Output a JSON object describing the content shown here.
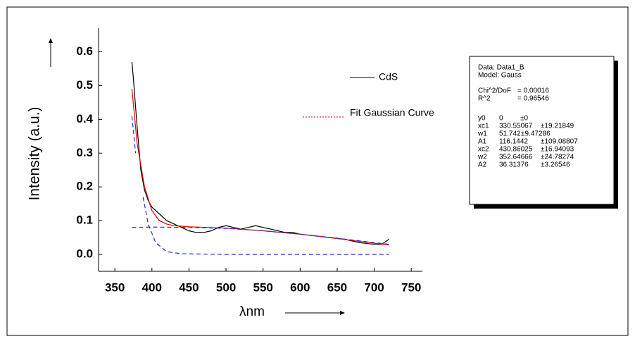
{
  "chart_data": {
    "type": "line",
    "x_label": "λnm",
    "y_label": "Intensity (a.u.)",
    "xlim": [
      328,
      765
    ],
    "ylim": [
      -0.05,
      0.67
    ],
    "xticks": [
      350,
      400,
      450,
      500,
      550,
      600,
      650,
      700,
      750
    ],
    "yticks": [
      {
        "value": 0,
        "label": "0.0"
      },
      0.1,
      0.2,
      0.3,
      0.4,
      0.5,
      0.6
    ],
    "series": [
      {
        "name": "CdS",
        "color": "#000000",
        "dash": "none",
        "x": [
          373,
          375,
          380,
          385,
          390,
          395,
          400,
          410,
          420,
          430,
          440,
          450,
          460,
          470,
          480,
          490,
          500,
          510,
          520,
          530,
          540,
          550,
          560,
          570,
          580,
          590,
          600,
          620,
          640,
          660,
          680,
          700,
          710,
          720
        ],
        "values": [
          0.57,
          0.52,
          0.38,
          0.25,
          0.19,
          0.16,
          0.14,
          0.12,
          0.1,
          0.09,
          0.08,
          0.07,
          0.065,
          0.065,
          0.07,
          0.08,
          0.085,
          0.08,
          0.075,
          0.08,
          0.085,
          0.08,
          0.075,
          0.07,
          0.065,
          0.065,
          0.06,
          0.055,
          0.05,
          0.045,
          0.035,
          0.03,
          0.03,
          0.045
        ]
      },
      {
        "name": "Fit Gaussian Curve",
        "color": "#e00000",
        "dash": "none",
        "x": [
          373,
          380,
          390,
          400,
          410,
          420,
          430,
          450,
          500,
          550,
          600,
          650,
          700,
          720
        ],
        "values": [
          0.49,
          0.33,
          0.2,
          0.13,
          0.1,
          0.09,
          0.085,
          0.082,
          0.078,
          0.07,
          0.06,
          0.047,
          0.033,
          0.028
        ]
      },
      {
        "color": "#2030d0",
        "dash": "6 4",
        "x": [
          373,
          400,
          450,
          500,
          550,
          600,
          650,
          700,
          720
        ],
        "values": [
          0.08,
          0.081,
          0.08,
          0.077,
          0.07,
          0.06,
          0.048,
          0.035,
          0.03
        ]
      },
      {
        "color": "#2030d0",
        "dash": "6 4",
        "x": [
          373,
          378,
          383,
          388,
          395,
          405,
          420,
          440,
          500,
          720
        ],
        "values": [
          0.41,
          0.3,
          null,
          0.17,
          0.09,
          0.035,
          0.008,
          0.002,
          0,
          0
        ]
      }
    ]
  },
  "stats": {
    "header": [
      "Data: Data1_B",
      "Model: Gauss"
    ],
    "fit": [
      [
        "Chi^2/DoF",
        "= 0.00016"
      ],
      [
        "R^2",
        "= 0.96546"
      ]
    ],
    "params": [
      [
        "y0",
        "0",
        "±0"
      ],
      [
        "xc1",
        "330.55067",
        "±19.21849"
      ],
      [
        "w1",
        "51.742",
        "±9.47286"
      ],
      [
        "A1",
        "116.1442",
        "±109.08807"
      ],
      [
        "xc2",
        "430.86025",
        "±16.94093"
      ],
      [
        "w2",
        "352.64666",
        "±24.78274"
      ],
      [
        "A2",
        "36.31376",
        "±3.26546"
      ]
    ]
  }
}
